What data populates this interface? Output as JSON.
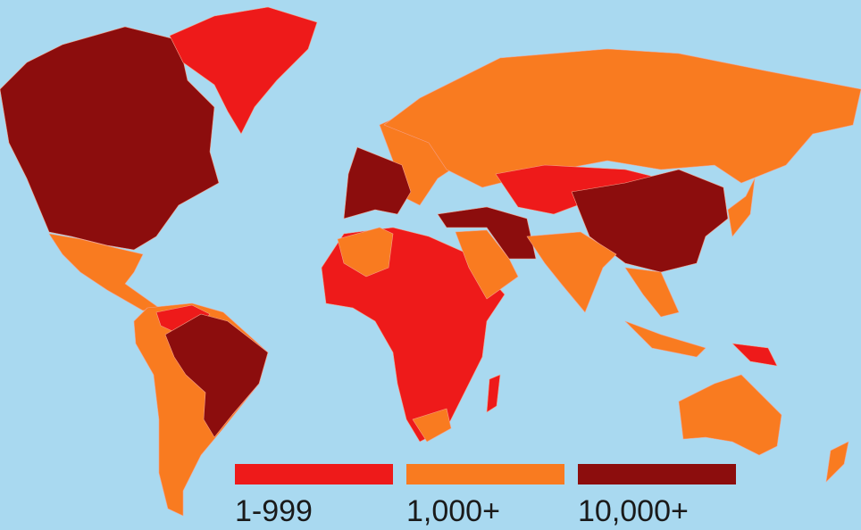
{
  "legend": [
    {
      "label": "1-999",
      "color": "#ee1a1a"
    },
    {
      "label": "1,000+",
      "color": "#f97b20"
    },
    {
      "label": "10,000+",
      "color": "#8c0d0d"
    }
  ]
}
